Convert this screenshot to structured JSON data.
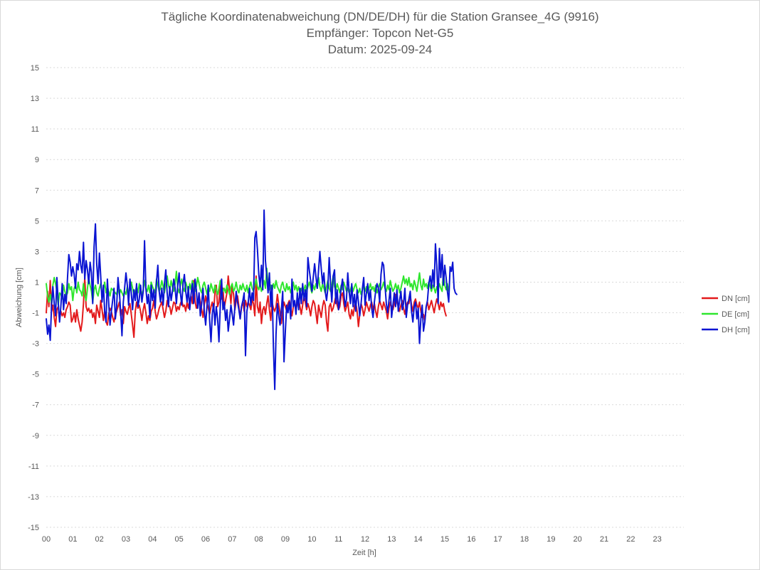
{
  "chart_data": {
    "type": "line",
    "title_lines": [
      "Tägliche Koordinatenabweichung (DN/DE/DH) für die Station Gransee_4G (9916)",
      "Empfänger: Topcon Net-G5",
      "Datum: 2025-09-24"
    ],
    "xlabel": "Zeit [h]",
    "ylabel": "Abweichung [cm]",
    "xlim": [
      0,
      24
    ],
    "ylim": [
      -15,
      15
    ],
    "x_ticks": [
      "00",
      "01",
      "02",
      "03",
      "04",
      "05",
      "06",
      "07",
      "08",
      "09",
      "10",
      "11",
      "12",
      "13",
      "14",
      "15",
      "16",
      "17",
      "18",
      "19",
      "20",
      "21",
      "22",
      "23"
    ],
    "y_ticks": [
      15,
      13,
      11,
      9,
      7,
      5,
      3,
      1,
      -1,
      -3,
      -5,
      -7,
      -9,
      -11,
      -13,
      -15
    ],
    "grid": "horizontal dotted",
    "legend_position": "right",
    "sample_interval_h": 0.05,
    "series": [
      {
        "name": "DN [cm]",
        "color": "#e31a1c",
        "values": [
          -1.0,
          0.4,
          -0.6,
          1.1,
          -0.9,
          -0.5,
          -1.3,
          -1.9,
          -0.8,
          -0.6,
          -1.4,
          -0.9,
          -1.2,
          -1.0,
          -1.3,
          -0.8,
          -0.6,
          -0.3,
          -0.5,
          -1.6,
          -1.4,
          -1.0,
          -1.6,
          -0.8,
          -1.4,
          -1.8,
          -2.2,
          -1.6,
          -0.4,
          1.3,
          -0.6,
          -0.9,
          -0.7,
          -1.0,
          -0.8,
          -1.3,
          -1.0,
          -1.7,
          -0.5,
          -0.9,
          -1.3,
          -0.2,
          -0.8,
          -1.5,
          -0.9,
          -1.6,
          -1.8,
          -1.1,
          -0.7,
          -0.9,
          -1.3,
          -1.6,
          -1.1,
          -0.9,
          -0.6,
          -0.3,
          -1.2,
          -0.8,
          -1.7,
          -0.6,
          -0.9,
          -1.1,
          -0.7,
          -0.4,
          -1.1,
          -1.8,
          -2.6,
          -0.9,
          -0.3,
          -0.7,
          -0.5,
          -0.9,
          -1.5,
          -0.8,
          -0.4,
          -1.0,
          -1.7,
          -1.2,
          -1.5,
          -0.9,
          -0.7,
          -0.2,
          -0.9,
          -1.4,
          -1.1,
          -0.7,
          -0.5,
          -0.3,
          -0.8,
          -1.3,
          -0.9,
          -0.2,
          -0.5,
          -0.6,
          -1.1,
          -0.7,
          -0.3,
          -0.4,
          -0.9,
          -0.6,
          -0.8,
          -0.4,
          -0.2,
          -0.6,
          -0.5,
          -0.9,
          -0.3,
          -0.7,
          -0.2,
          0.1,
          -0.4,
          1.1,
          -0.2,
          -0.7,
          -0.4,
          0.2,
          -0.3,
          -0.8,
          -1.3,
          -0.5,
          0.1,
          -0.4,
          -0.7,
          -1.1,
          -0.6,
          -0.3,
          -0.9,
          0.3,
          0.8,
          -0.6,
          -0.3,
          1.0,
          -0.1,
          0.6,
          -0.7,
          -0.2,
          0.3,
          1.4,
          0.5,
          -0.4,
          0.8,
          0.2,
          -0.8,
          -0.2,
          0.1,
          -0.6,
          -1.4,
          -0.6,
          -0.3,
          -0.9,
          -0.2,
          -0.6,
          -0.3,
          -0.5,
          -0.8,
          -0.1,
          -0.4,
          -1.2,
          1.4,
          -0.6,
          -1.0,
          -0.3,
          -1.7,
          -0.8,
          -0.6,
          -1.1,
          -0.4,
          0.1,
          -0.8,
          -1.5,
          -0.3,
          -0.7,
          -0.9,
          -0.6,
          0.2,
          -0.5,
          -1.0,
          -1.7,
          -0.8,
          -0.3,
          -0.6,
          -0.9,
          -0.4,
          -0.2,
          -0.7,
          -1.2,
          -0.6,
          -0.3,
          -0.8,
          -0.4,
          -0.1,
          -0.6,
          -1.1,
          -0.5,
          0.1,
          -0.3,
          -0.8,
          -0.4,
          -0.7,
          -1.2,
          -0.6,
          -0.2,
          -0.4,
          -1.0,
          -1.7,
          -0.5,
          -0.9,
          -1.3,
          -0.6,
          -0.2,
          -0.5,
          -1.6,
          -2.2,
          -0.6,
          -0.4,
          -0.9,
          -0.7,
          -0.3,
          0.1,
          -0.5,
          -0.8,
          -0.6,
          0.1,
          0.3,
          -0.4,
          -0.9,
          -0.6,
          -0.3,
          -1.1,
          -1.4,
          -0.8,
          -1.2,
          -0.6,
          -0.3,
          -0.9,
          -1.9,
          -1.1,
          -0.4,
          -0.7,
          -1.2,
          -0.8,
          -0.3,
          -0.6,
          -0.9,
          -0.5,
          -0.3,
          -0.8,
          -0.4,
          -0.9,
          -1.3,
          -0.6,
          -0.2,
          -0.5,
          -0.8,
          -0.3,
          -0.6,
          -0.9,
          -1.4,
          -0.7,
          -0.3,
          -0.6,
          -0.8,
          -0.4,
          0.2,
          -0.3,
          -0.6,
          -0.9,
          -0.5,
          -0.2,
          -0.7,
          -1.1,
          -0.6,
          -0.3,
          -0.4,
          0.1,
          -0.5,
          -0.9,
          -0.3,
          -0.1,
          -0.5,
          -0.7,
          -0.3,
          -0.9,
          -1.3,
          -1.1,
          -1.5,
          -0.6,
          -0.3,
          -0.8,
          -0.5,
          -0.2,
          -0.6,
          -1.0,
          -0.5,
          -0.1,
          -0.4,
          -0.8,
          -0.3,
          -0.6,
          -0.4,
          -0.9,
          -1.2
        ]
      },
      {
        "name": "DE [cm]",
        "color": "#2ee62e",
        "values": [
          0.9,
          0.1,
          -0.3,
          0.2,
          -0.4,
          0.8,
          1.3,
          0.9,
          0.4,
          -0.5,
          0.3,
          0.2,
          -0.1,
          0.8,
          0.4,
          0.1,
          0.3,
          0.9,
          0.5,
          0.7,
          -0.2,
          0.6,
          0.8,
          0.3,
          1.0,
          0.5,
          0.4,
          0.1,
          0.9,
          0.2,
          -0.2,
          0.6,
          1.3,
          0.8,
          0.4,
          -0.3,
          0.5,
          0.8,
          0.3,
          0.1,
          0.6,
          0.9,
          0.2,
          0.5,
          1.0,
          0.3,
          0.7,
          0.4,
          0.1,
          0.6,
          0.5,
          0.4,
          0.3,
          0.2,
          0.6,
          0.2,
          0.5,
          0.3,
          0.1,
          0.4,
          0.2,
          0.7,
          0.3,
          0.5,
          1.0,
          0.6,
          0.2,
          0.4,
          0.7,
          0.3,
          0.9,
          0.4,
          0.2,
          0.5,
          1.1,
          0.6,
          0.4,
          0.8,
          0.3,
          1.0,
          0.7,
          0.5,
          0.3,
          1.2,
          0.8,
          0.4,
          0.6,
          1.1,
          0.7,
          0.3,
          0.9,
          1.4,
          0.8,
          0.5,
          1.1,
          0.7,
          0.4,
          0.9,
          1.7,
          0.6,
          0.3,
          0.8,
          1.2,
          0.6,
          0.4,
          1.0,
          0.7,
          0.3,
          0.9,
          0.5,
          1.1,
          0.8,
          0.4,
          0.7,
          1.3,
          0.9,
          0.5,
          0.3,
          0.8,
          1.0,
          0.6,
          0.2,
          0.7,
          0.4,
          0.9,
          0.6,
          0.3,
          0.8,
          0.5,
          0.2,
          0.6,
          1.1,
          0.7,
          0.4,
          0.6,
          0.3,
          0.8,
          0.5,
          0.2,
          0.7,
          0.9,
          0.4,
          0.6,
          1.0,
          0.5,
          0.3,
          0.8,
          0.5,
          0.9,
          0.6,
          0.4,
          0.8,
          0.3,
          0.7,
          1.0,
          0.6,
          0.4,
          0.8,
          1.2,
          0.7,
          0.5,
          0.9,
          0.4,
          0.7,
          1.1,
          0.6,
          1.9,
          0.7,
          0.5,
          0.8,
          0.4,
          0.9,
          0.6,
          1.1,
          0.7,
          0.5,
          0.3,
          0.8,
          1.0,
          0.6,
          0.4,
          0.9,
          0.5,
          0.7,
          0.3,
          0.6,
          1.0,
          0.5,
          0.8,
          0.4,
          0.7,
          0.3,
          0.6,
          0.2,
          0.5,
          0.8,
          0.4,
          0.7,
          1.0,
          0.6,
          0.3,
          0.8,
          0.5,
          0.9,
          0.6,
          1.3,
          0.7,
          0.4,
          0.9,
          0.6,
          0.3,
          0.7,
          1.1,
          0.6,
          0.4,
          0.8,
          1.4,
          0.7,
          0.5,
          0.9,
          0.6,
          0.3,
          0.8,
          0.5,
          1.0,
          0.7,
          0.4,
          0.6,
          0.3,
          0.5,
          0.8,
          0.4,
          0.7,
          0.9,
          0.5,
          0.3,
          0.6,
          0.2,
          0.5,
          0.8,
          0.4,
          0.7,
          0.3,
          0.6,
          0.9,
          0.5,
          0.7,
          0.4,
          0.8,
          0.3,
          0.6,
          0.9,
          0.5,
          0.7,
          1.0,
          0.6,
          0.4,
          0.8,
          0.5,
          1.1,
          0.7,
          0.4,
          0.6,
          0.9,
          0.5,
          0.8,
          0.3,
          0.6,
          1.0,
          1.4,
          0.9,
          1.2,
          0.8,
          1.3,
          0.7,
          0.9,
          0.5,
          1.1,
          0.8,
          0.4,
          1.0,
          1.6,
          0.8,
          0.5,
          1.2,
          0.7,
          0.9,
          0.6,
          1.0,
          0.7,
          0.4,
          0.8,
          0.6,
          0.3,
          0.7,
          0.5,
          0.9,
          0.6,
          0.4,
          1.7,
          0.8,
          0.5,
          0.9,
          0.4
        ]
      },
      {
        "name": "DH [cm]",
        "color": "#0a14d2",
        "values": [
          -1.4,
          -2.4,
          -1.8,
          -2.8,
          -0.5,
          0.7,
          -0.4,
          -1.2,
          1.3,
          -0.3,
          -1.6,
          -0.6,
          0.9,
          -0.8,
          0.2,
          -0.4,
          1.3,
          2.8,
          2.3,
          1.4,
          2.0,
          1.5,
          0.6,
          2.2,
          1.8,
          3.0,
          2.1,
          1.6,
          3.6,
          1.2,
          2.4,
          1.8,
          0.9,
          2.3,
          1.6,
          -0.4,
          3.3,
          4.8,
          2.2,
          0.9,
          2.9,
          1.4,
          -0.3,
          0.8,
          -0.9,
          -1.6,
          1.2,
          -0.3,
          -1.8,
          -0.9,
          -0.2,
          0.6,
          -1.4,
          -0.6,
          1.3,
          0.4,
          -0.9,
          -2.5,
          -0.3,
          0.6,
          1.6,
          0.8,
          -0.5,
          1.2,
          0.3,
          -0.8,
          0.5,
          -0.2,
          0.9,
          -0.6,
          -0.1,
          0.8,
          -0.3,
          0.4,
          3.7,
          0.6,
          -0.4,
          0.2,
          -1.3,
          0.8,
          -0.2,
          0.5,
          -0.7,
          1.0,
          2.1,
          0.4,
          -0.3,
          0.6,
          -0.5,
          0.9,
          1.8,
          0.3,
          -0.6,
          0.7,
          -0.2,
          0.4,
          1.2,
          0.6,
          -0.4,
          0.8,
          1.6,
          0.3,
          -0.5,
          0.9,
          1.5,
          0.4,
          -0.3,
          0.7,
          -0.8,
          0.2,
          0.9,
          -0.4,
          1.2,
          0.5,
          -0.7,
          0.3,
          -1.2,
          -0.4,
          0.6,
          -0.9,
          -1.8,
          -0.5,
          0.8,
          -1.5,
          -2.9,
          -1.1,
          -0.4,
          -1.8,
          -0.6,
          -1.4,
          -2.9,
          -0.6,
          1.2,
          -0.8,
          -0.3,
          -1.5,
          -0.8,
          -2.2,
          -1.4,
          -0.5,
          -1.1,
          -1.8,
          -0.6,
          0.4,
          -0.3,
          -0.8,
          -1.4,
          -0.6,
          -0.2,
          0.3,
          -3.8,
          -0.9,
          -0.4,
          0.6,
          -0.5,
          0.3,
          -0.2,
          3.9,
          4.3,
          3.1,
          1.5,
          0.7,
          2.1,
          0.5,
          5.7,
          2.4,
          1.4,
          0.3,
          1.6,
          -0.6,
          0.8,
          -3.2,
          -6.0,
          -2.4,
          -0.4,
          -1.2,
          -1.8,
          -0.8,
          0.4,
          -4.2,
          -2.2,
          -0.5,
          -1.0,
          -0.3,
          -1.4,
          1.2,
          -0.6,
          -0.2,
          -1.1,
          0.3,
          -0.8,
          0.6,
          -0.4,
          0.9,
          -0.2,
          0.5,
          -0.6,
          2.6,
          1.8,
          1.1,
          0.4,
          1.3,
          2.2,
          1.4,
          0.6,
          1.8,
          3.0,
          1.9,
          0.9,
          1.6,
          0.4,
          -0.2,
          0.6,
          2.6,
          0.9,
          -0.3,
          1.4,
          1.8,
          -0.4,
          0.5,
          -0.8,
          -0.2,
          0.6,
          1.2,
          0.3,
          -0.6,
          -0.1,
          1.6,
          0.4,
          -0.4,
          0.9,
          -0.6,
          0.2,
          -0.9,
          0.5,
          -0.3,
          -1.2,
          -0.4,
          0.6,
          1.3,
          -0.5,
          0.3,
          0.9,
          -0.2,
          0.5,
          -0.7,
          -1.3,
          -0.3,
          0.4,
          0.9,
          0.6,
          -0.3,
          1.5,
          2.3,
          2.1,
          0.8,
          -0.4,
          -1.0,
          -0.2,
          0.6,
          -1.3,
          -0.5,
          0.3,
          -0.6,
          0.5,
          -0.9,
          -0.2,
          0.4,
          -0.8,
          -0.4,
          0.6,
          -1.3,
          -0.5,
          -0.1,
          0.4,
          -0.9,
          -1.6,
          -0.6,
          -0.3,
          -1.4,
          -0.7,
          -3.0,
          -1.4,
          -0.5,
          -2.2,
          -1.6,
          -0.6,
          -0.2,
          0.9,
          1.4,
          0.6,
          1.8,
          0.7,
          3.5,
          2.1,
          -0.4,
          3.2,
          1.3,
          2.8,
          0.8,
          2.1,
          1.3,
          0.4,
          -0.3,
          2.0,
          1.7,
          2.3,
          0.6,
          0.3,
          0.2
        ]
      }
    ]
  }
}
